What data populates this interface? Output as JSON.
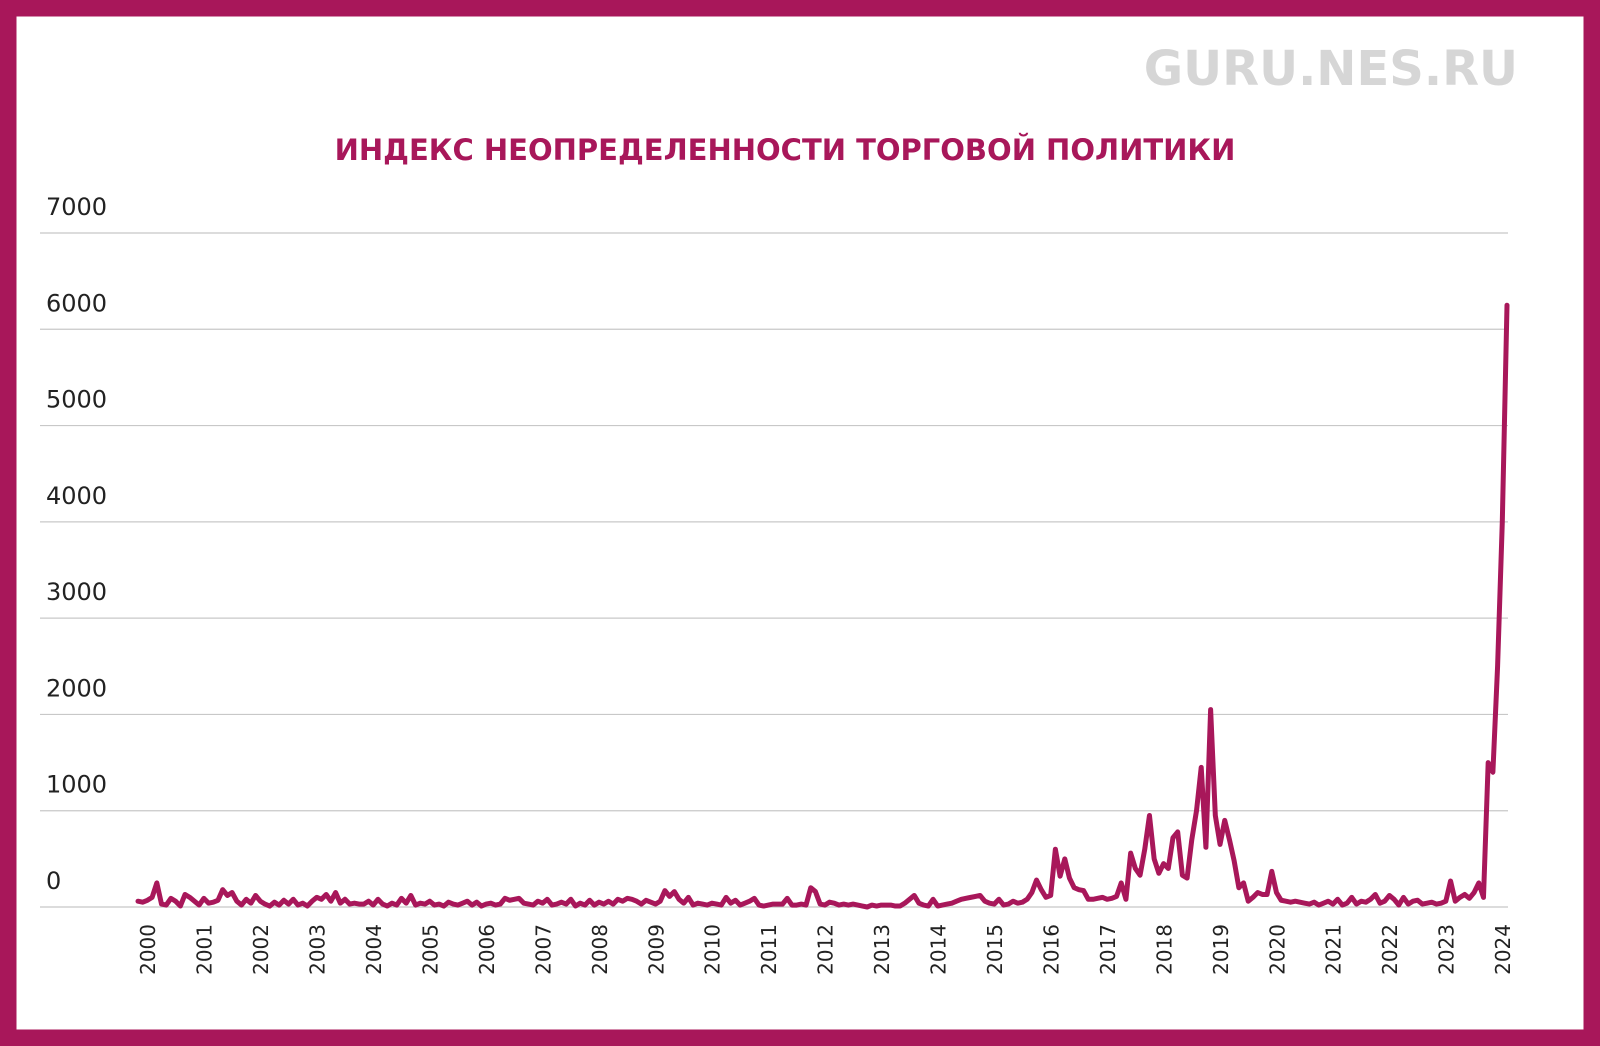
{
  "watermark": "GURU.NES.RU",
  "chart_data": {
    "type": "line",
    "title": "ИНДЕКС НЕОПРЕДЕЛЕННОСТИ ТОРГОВОЙ ПОЛИТИКИ",
    "color": "#a8175a",
    "grid": true,
    "ylim": [
      0,
      7000
    ],
    "yticks": [
      0,
      1000,
      2000,
      3000,
      4000,
      5000,
      6000,
      7000
    ],
    "categories": [
      null,
      "2000",
      null,
      null,
      null,
      null,
      null,
      null,
      null,
      null,
      null,
      null,
      null,
      "2001",
      null,
      null,
      null,
      null,
      null,
      null,
      null,
      null,
      null,
      null,
      null,
      "2002",
      null,
      null,
      null,
      null,
      null,
      null,
      null,
      null,
      null,
      null,
      null,
      "2003",
      null,
      null,
      null,
      null,
      null,
      null,
      null,
      null,
      null,
      null,
      null,
      "2004",
      null,
      null,
      null,
      null,
      null,
      null,
      null,
      null,
      null,
      null,
      null,
      "2005",
      null,
      null,
      null,
      null,
      null,
      null,
      null,
      null,
      null,
      null,
      null,
      "2006",
      null,
      null,
      null,
      null,
      null,
      null,
      null,
      null,
      null,
      null,
      null,
      "2007",
      null,
      null,
      null,
      null,
      null,
      null,
      null,
      null,
      null,
      null,
      null,
      "2008",
      null,
      null,
      null,
      null,
      null,
      null,
      null,
      null,
      null,
      null,
      null,
      "2009",
      null,
      null,
      null,
      null,
      null,
      null,
      null,
      null,
      null,
      null,
      null,
      "2010",
      null,
      null,
      null,
      null,
      null,
      null,
      null,
      null,
      null,
      null,
      null,
      "2011",
      null,
      null,
      null,
      null,
      null,
      null,
      null,
      null,
      null,
      null,
      null,
      "2012",
      null,
      null,
      null,
      null,
      null,
      null,
      null,
      null,
      null,
      null,
      null,
      "2013",
      null,
      null,
      null,
      null,
      null,
      null,
      null,
      null,
      null,
      null,
      null,
      "2014",
      null,
      null,
      null,
      null,
      null,
      null,
      null,
      null,
      null,
      null,
      null,
      "2015",
      null,
      null,
      null,
      null,
      null,
      null,
      null,
      null,
      null,
      null,
      null,
      "2016",
      null,
      null,
      null,
      null,
      null,
      null,
      null,
      null,
      null,
      null,
      null,
      "2017",
      null,
      null,
      null,
      null,
      null,
      null,
      null,
      null,
      null,
      null,
      null,
      "2018",
      null,
      null,
      null,
      null,
      null,
      null,
      null,
      null,
      null,
      null,
      null,
      "2019",
      null,
      null,
      null,
      null,
      null,
      null,
      null,
      null,
      null,
      null,
      null,
      "2020",
      null,
      null,
      null,
      null,
      null,
      null,
      null,
      null,
      null,
      null,
      null,
      "2021",
      null,
      null,
      null,
      null,
      null,
      null,
      null,
      null,
      null,
      null,
      null,
      "2022",
      null,
      null,
      null,
      null,
      null,
      null,
      null,
      null,
      null,
      null,
      null,
      "2023",
      null,
      null,
      null,
      null,
      null,
      null,
      null,
      null,
      null,
      null,
      null,
      "2024",
      null,
      null
    ],
    "values": [
      60,
      50,
      70,
      100,
      250,
      30,
      20,
      90,
      60,
      10,
      130,
      100,
      60,
      20,
      90,
      40,
      50,
      70,
      180,
      120,
      150,
      60,
      20,
      80,
      40,
      120,
      60,
      30,
      10,
      50,
      20,
      70,
      30,
      80,
      20,
      40,
      10,
      60,
      100,
      80,
      130,
      60,
      150,
      40,
      80,
      30,
      40,
      30,
      30,
      60,
      20,
      80,
      30,
      10,
      40,
      20,
      90,
      40,
      120,
      20,
      40,
      30,
      60,
      20,
      30,
      10,
      50,
      30,
      20,
      40,
      60,
      20,
      50,
      10,
      30,
      40,
      20,
      30,
      90,
      70,
      80,
      90,
      40,
      30,
      20,
      60,
      40,
      80,
      20,
      30,
      50,
      30,
      80,
      10,
      40,
      20,
      70,
      20,
      50,
      30,
      60,
      30,
      80,
      60,
      90,
      80,
      60,
      30,
      70,
      50,
      30,
      60,
      170,
      110,
      160,
      80,
      40,
      100,
      20,
      40,
      30,
      20,
      40,
      30,
      20,
      100,
      40,
      70,
      20,
      40,
      60,
      90,
      20,
      10,
      20,
      30,
      30,
      30,
      90,
      20,
      20,
      30,
      20,
      200,
      160,
      30,
      20,
      50,
      40,
      20,
      30,
      20,
      30,
      20,
      10,
      0,
      20,
      10,
      20,
      20,
      20,
      10,
      10,
      40,
      80,
      120,
      40,
      20,
      10,
      80,
      10,
      20,
      30,
      40,
      60,
      80,
      90,
      100,
      110,
      120,
      60,
      40,
      30,
      80,
      20,
      30,
      60,
      40,
      50,
      80,
      150,
      280,
      180,
      100,
      120,
      600,
      320,
      500,
      300,
      200,
      180,
      170,
      80,
      80,
      90,
      100,
      80,
      90,
      110,
      250,
      80,
      560,
      400,
      330,
      600,
      950,
      500,
      350,
      450,
      400,
      720,
      780,
      330,
      300,
      700,
      1000,
      1450,
      620,
      2050,
      950,
      650,
      900,
      700,
      480,
      200,
      250,
      60,
      100,
      150,
      130,
      130,
      370,
      150,
      70,
      60,
      50,
      60,
      50,
      40,
      30,
      50,
      20,
      40,
      60,
      30,
      80,
      20,
      40,
      100,
      30,
      60,
      50,
      80,
      130,
      40,
      60,
      120,
      80,
      20,
      100,
      30,
      60,
      70,
      30,
      40,
      50,
      30,
      40,
      60,
      270,
      60,
      100,
      130,
      90,
      150,
      250,
      100,
      1500,
      1400,
      2500,
      4000,
      6250
    ]
  }
}
